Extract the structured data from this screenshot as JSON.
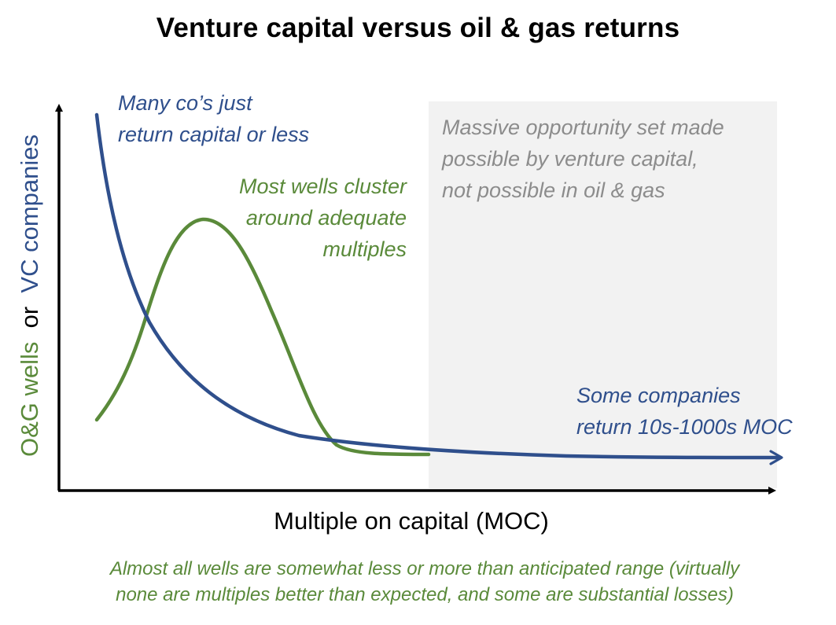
{
  "title": "Venture capital versus oil & gas returns",
  "axes": {
    "x_label": "Multiple on capital (MOC)",
    "y_label": {
      "part1": "O&G wells",
      "part2": "or",
      "part3": "VC companies"
    }
  },
  "annotations": {
    "vc_low": [
      "Many co’s just",
      "return capital or less"
    ],
    "og_cluster": [
      "Most wells cluster",
      "around adequate",
      "multiples"
    ],
    "opportunity": [
      "Massive opportunity set made",
      "possible by venture capital,",
      "not possible in oil & gas"
    ],
    "vc_high": [
      "Some companies",
      "return 10s-1000s MOC"
    ]
  },
  "footnote": [
    "Almost all wells are somewhat less or more than anticipated range (virtually",
    "none are multiples better than expected, and some are substantial losses)"
  ],
  "colors": {
    "vc": "#2f4f8c",
    "og": "#5a8a3a",
    "opportunity_region": "#f2f2f2",
    "opportunity_text": "#8c8c8c",
    "axis": "#000000"
  }
}
